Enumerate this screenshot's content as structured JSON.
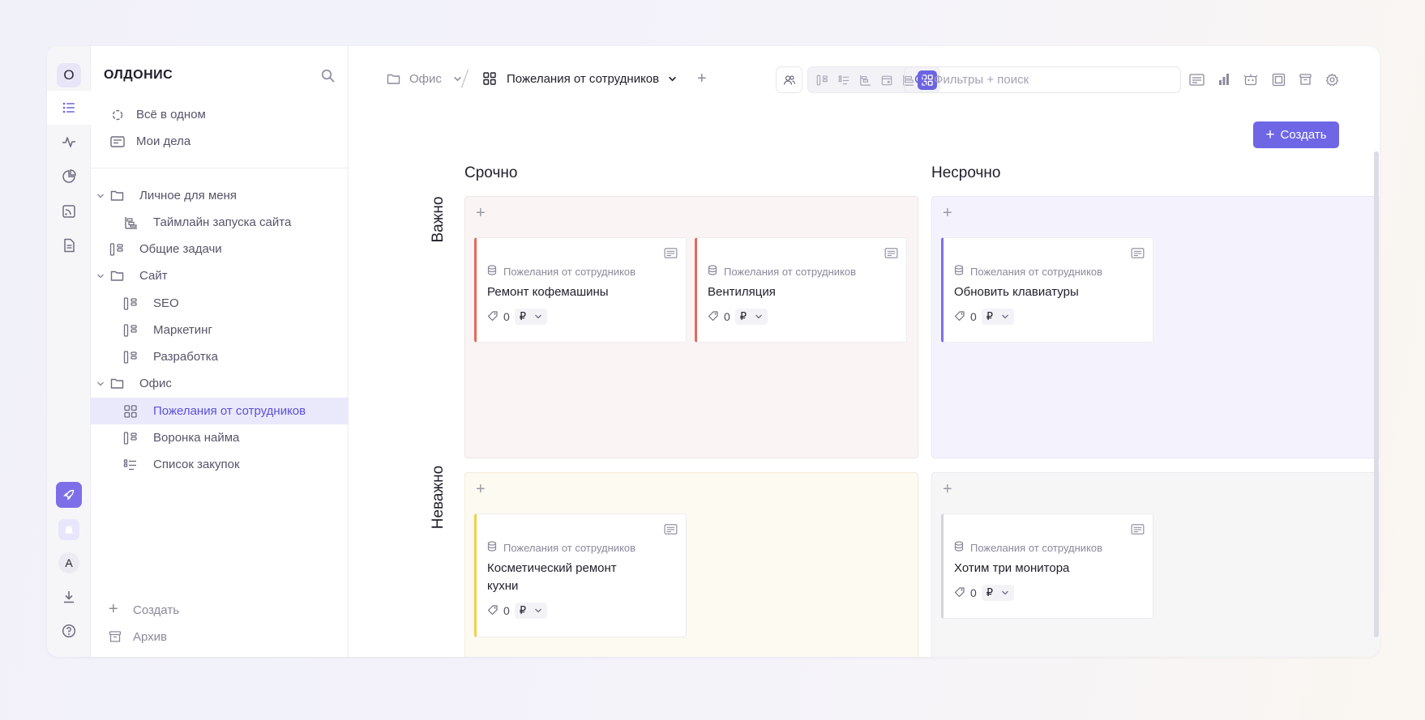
{
  "rail": {
    "workspace_initial": "O",
    "user_initial": "A"
  },
  "sidebar": {
    "workspace_name": "олдонис",
    "top_items": [
      {
        "label": "Всё в одном",
        "icon": "all-in-one-icon"
      },
      {
        "label": "Мои дела",
        "icon": "my-tasks-icon"
      }
    ],
    "tree": [
      {
        "label": "Личное для меня",
        "icon": "folder-icon",
        "expanded": true
      },
      {
        "label": "Таймлайн запуска сайта",
        "icon": "timeline-icon"
      },
      {
        "label": "Общие задачи",
        "icon": "kanban-icon"
      },
      {
        "label": "Сайт",
        "icon": "folder-icon",
        "expanded": true
      },
      {
        "label": "SEO",
        "icon": "kanban-icon"
      },
      {
        "label": "Маркетинг",
        "icon": "kanban-icon"
      },
      {
        "label": "Разработка",
        "icon": "kanban-icon"
      },
      {
        "label": "Офис",
        "icon": "folder-icon",
        "expanded": true
      },
      {
        "label": "Пожелания от сотрудников",
        "icon": "matrix-icon",
        "active": true
      },
      {
        "label": "Воронка найма",
        "icon": "kanban-icon"
      },
      {
        "label": "Список закупок",
        "icon": "checklist-icon"
      }
    ],
    "create_label": "Создать",
    "archive_label": "Архив"
  },
  "header": {
    "breadcrumb_parent": "Офис",
    "breadcrumb_current": "Пожелания от сотрудников",
    "search_placeholder": "Фильтры + поиск",
    "active_view": "matrix-view"
  },
  "toolbar": {
    "create_label": "Создать"
  },
  "matrix": {
    "columns": [
      "Срочно",
      "Несрочно"
    ],
    "rows": [
      "Важно",
      "Неважно"
    ],
    "accent_colors": {
      "urgent_important": "#e46a5a",
      "not_urgent_important": "#7c6fe8",
      "urgent_not_important": "#f0d04a",
      "not_urgent_not_important": "#d4d4dc"
    },
    "quadrants": {
      "urgent_important": [
        {
          "source": "Пожелания от сотрудников",
          "title": "Ремонт кофемашины",
          "count": "0",
          "currency": "₽"
        },
        {
          "source": "Пожелания от сотрудников",
          "title": "Вентиляция",
          "count": "0",
          "currency": "₽"
        }
      ],
      "not_urgent_important": [
        {
          "source": "Пожелания от сотрудников",
          "title": "Обновить клавиатуры",
          "count": "0",
          "currency": "₽"
        }
      ],
      "urgent_not_important": [
        {
          "source": "Пожелания от сотрудников",
          "title": "Косметический ремонт кухни",
          "count": "0",
          "currency": "₽"
        }
      ],
      "not_urgent_not_important": [
        {
          "source": "Пожелания от сотрудников",
          "title": "Хотим три монитора",
          "count": "0",
          "currency": "₽"
        }
      ]
    }
  }
}
